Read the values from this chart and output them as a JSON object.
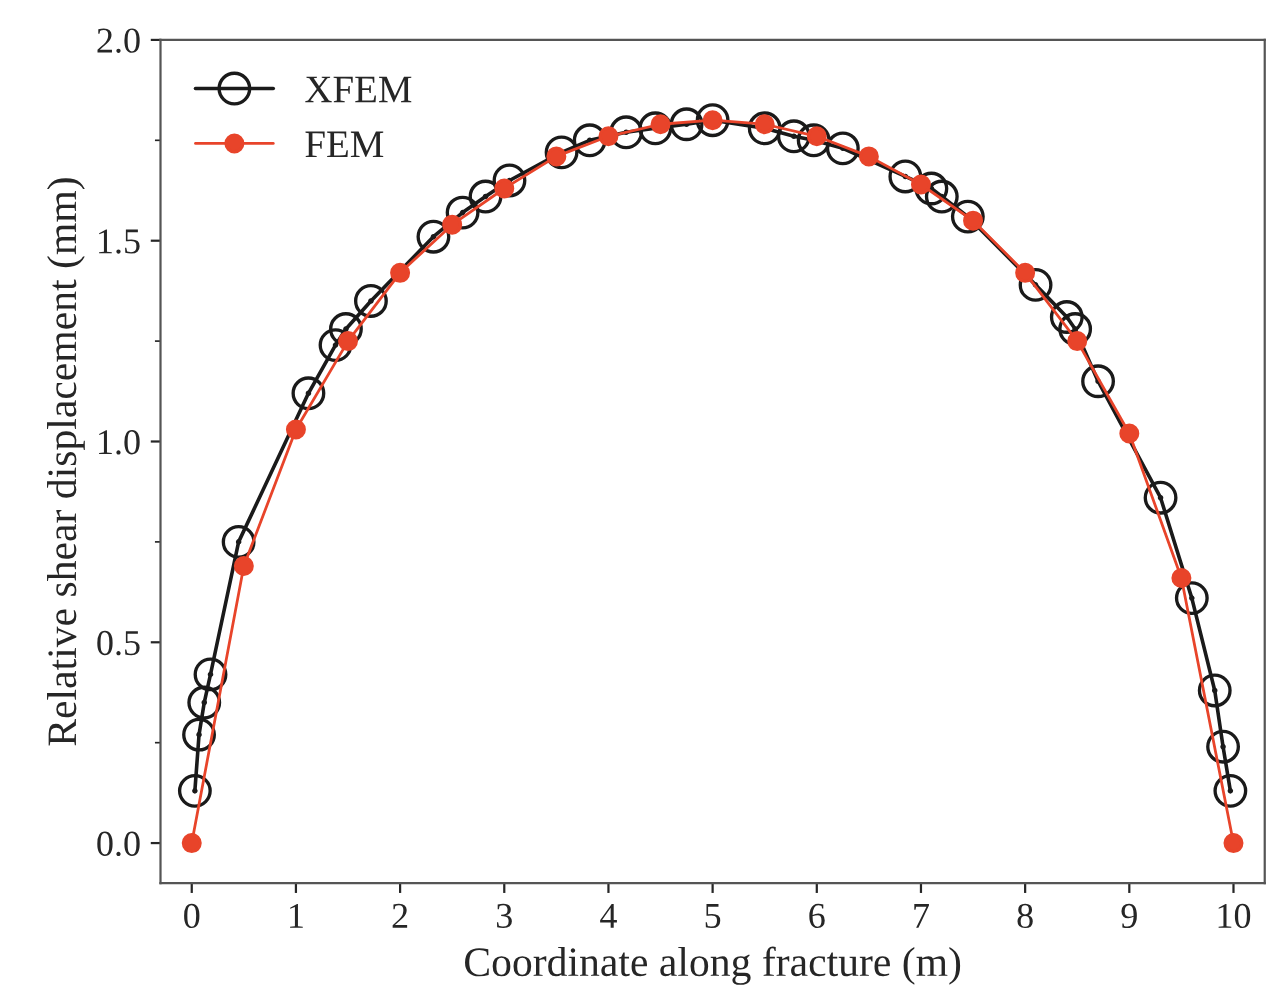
{
  "chart_data": {
    "type": "line",
    "xlabel": "Coordinate along fracture (m)",
    "ylabel": "Relative shear displacement (mm)",
    "xlim": [
      -0.3,
      10.3
    ],
    "xticks": [
      0,
      1,
      2,
      3,
      4,
      5,
      6,
      7,
      8,
      9,
      10
    ],
    "ylim": [
      -0.1,
      2.0
    ],
    "yticks": [
      {
        "value": 0,
        "label": "0.0"
      },
      {
        "value": 0.5,
        "label": "0.5"
      },
      {
        "value": 1,
        "label": "1.0"
      },
      {
        "value": 1.5,
        "label": "1.5"
      },
      {
        "value": 2,
        "label": "2.0"
      }
    ],
    "grid": false,
    "legend": "top left",
    "line_style": "solid",
    "series": [
      {
        "name": "XFEM",
        "color": "#1a1a1a",
        "marker": "circle",
        "x": [
          0.03,
          0.07,
          0.12,
          0.18,
          0.45,
          1.12,
          1.38,
          1.48,
          1.72,
          2.32,
          2.6,
          2.82,
          3.05,
          3.55,
          3.82,
          4.17,
          4.45,
          4.75,
          5.0,
          5.5,
          5.78,
          5.97,
          6.25,
          6.85,
          7.1,
          7.2,
          7.45,
          8.1,
          8.4,
          8.48,
          8.7,
          9.3,
          9.6,
          9.82,
          9.9,
          9.97
        ],
        "values": [
          0.13,
          0.27,
          0.35,
          0.42,
          0.75,
          1.12,
          1.24,
          1.28,
          1.35,
          1.51,
          1.57,
          1.61,
          1.65,
          1.72,
          1.75,
          1.77,
          1.78,
          1.79,
          1.8,
          1.78,
          1.76,
          1.75,
          1.73,
          1.66,
          1.63,
          1.61,
          1.56,
          1.39,
          1.31,
          1.28,
          1.15,
          0.86,
          0.61,
          0.38,
          0.24,
          0.13
        ]
      },
      {
        "name": "FEM",
        "color": "#e8442a",
        "marker": "circle",
        "x": [
          0,
          0.5,
          1,
          1.5,
          2,
          2.5,
          3,
          3.5,
          4,
          4.5,
          5,
          5.5,
          6,
          6.5,
          7,
          7.5,
          8,
          8.5,
          9,
          9.5,
          10
        ],
        "values": [
          0,
          0.69,
          1.03,
          1.25,
          1.42,
          1.54,
          1.63,
          1.71,
          1.76,
          1.79,
          1.8,
          1.79,
          1.76,
          1.71,
          1.64,
          1.55,
          1.42,
          1.25,
          1.02,
          0.66,
          0
        ]
      }
    ]
  }
}
